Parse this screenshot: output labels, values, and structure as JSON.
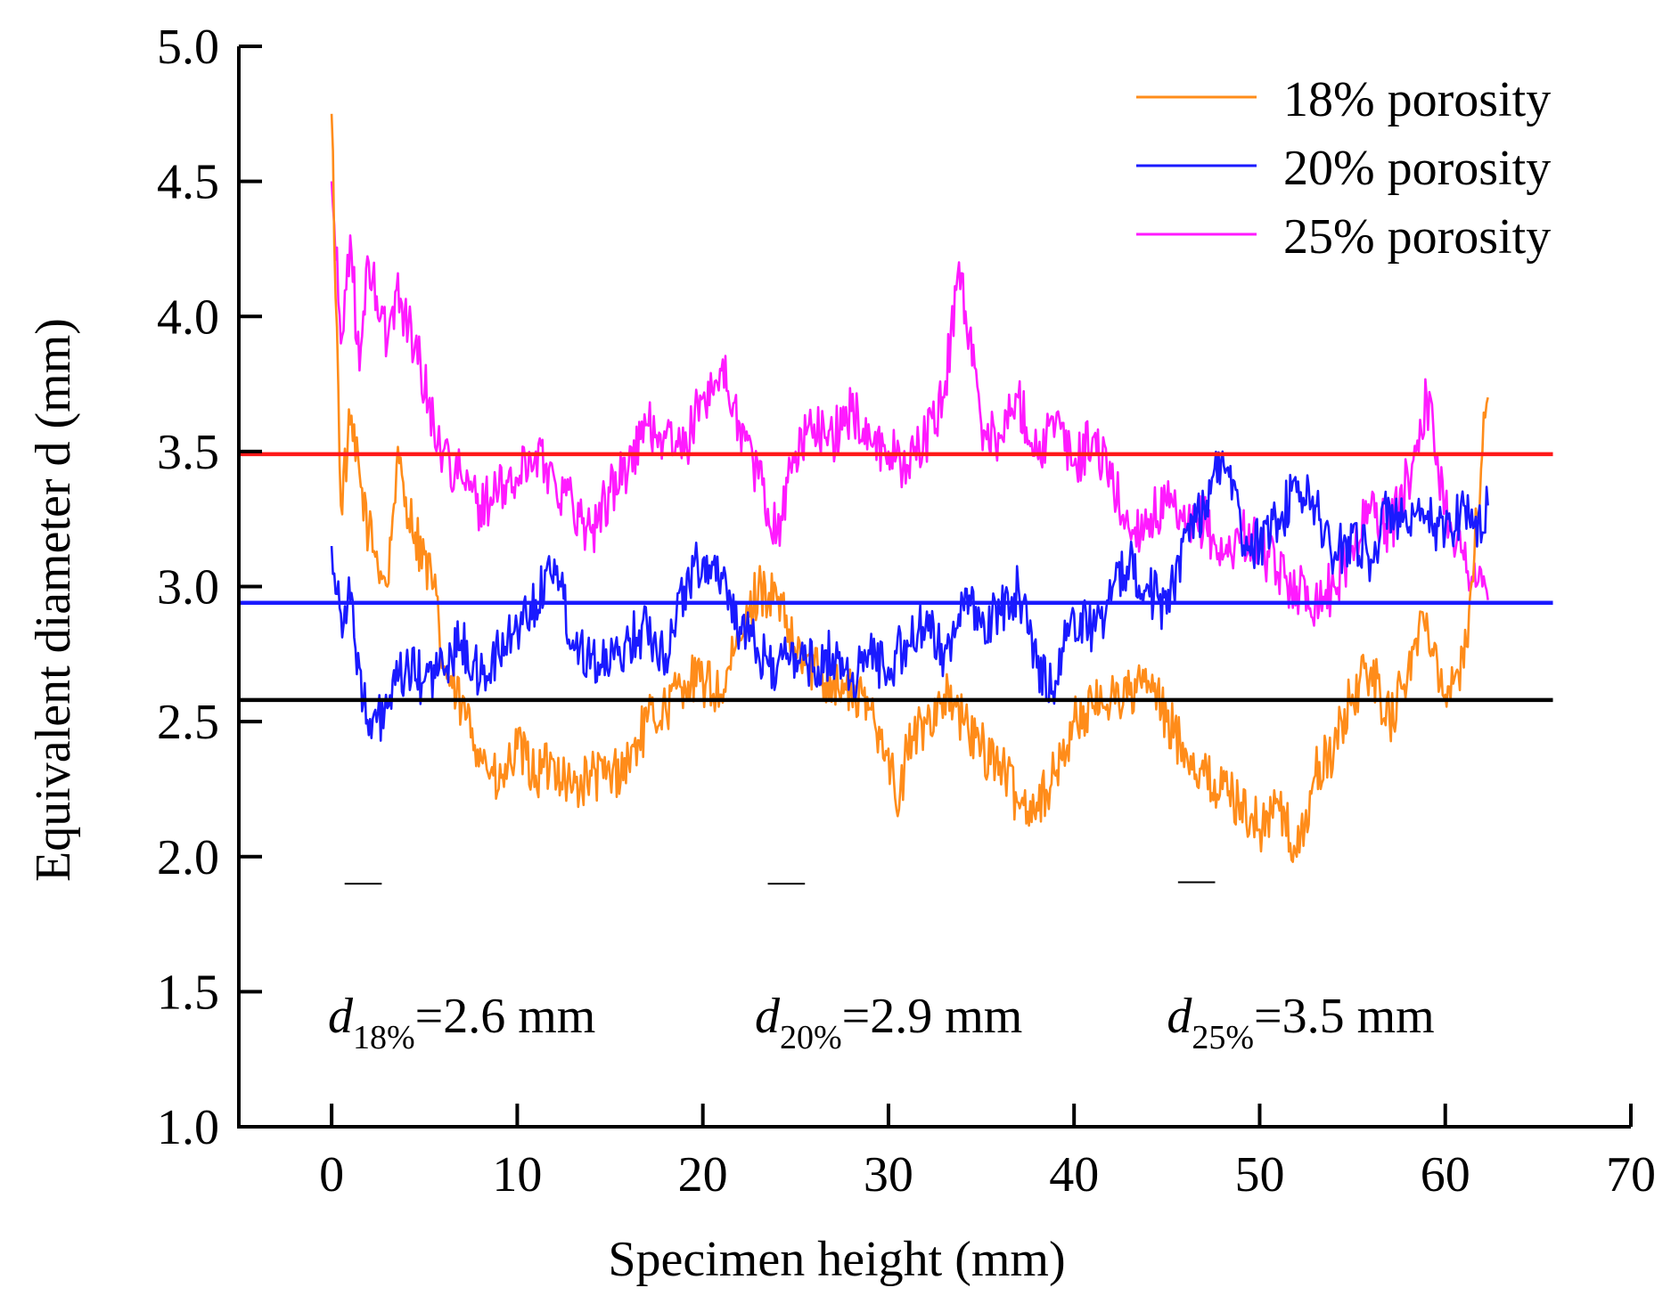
{
  "chart_data": {
    "type": "line",
    "title": "",
    "xlabel": "Specimen height (mm)",
    "ylabel": "Equivalent diameter d (mm)",
    "xlim": [
      -5,
      70
    ],
    "ylim": [
      1.0,
      5.0
    ],
    "x_ticks": [
      0,
      10,
      20,
      30,
      40,
      50,
      60,
      70
    ],
    "y_ticks": [
      1.0,
      1.5,
      2.0,
      2.5,
      3.0,
      3.5,
      4.0,
      4.5,
      5.0
    ],
    "x_tick_labels": [
      "0",
      "10",
      "20",
      "30",
      "40",
      "50",
      "60",
      "70"
    ],
    "y_tick_labels": [
      "1.0",
      "1.5",
      "2.0",
      "2.5",
      "3.0",
      "3.5",
      "4.0",
      "4.5",
      "5.0"
    ],
    "legend_position": "top-right",
    "series": [
      {
        "name": "18% porosity",
        "color": "#ff8c1a",
        "x": [
          0,
          0.5,
          1,
          2,
          3,
          3.5,
          4.5,
          5.5,
          6,
          7,
          8,
          9,
          10,
          11,
          12,
          13,
          14,
          15,
          16,
          17,
          18,
          19,
          20,
          21,
          22,
          23,
          24,
          25,
          26,
          27,
          28,
          29,
          30,
          30.5,
          31,
          32,
          33,
          34,
          35,
          36,
          37,
          38,
          39,
          40,
          41,
          42,
          43,
          44,
          45,
          46,
          47,
          48,
          49,
          50,
          51,
          52,
          53,
          54,
          55,
          56,
          57,
          58,
          59,
          60,
          61,
          62,
          62.3
        ],
        "values": [
          4.75,
          3.3,
          3.6,
          3.2,
          3.0,
          3.45,
          3.2,
          3.0,
          2.7,
          2.55,
          2.4,
          2.25,
          2.4,
          2.3,
          2.35,
          2.25,
          2.3,
          2.3,
          2.35,
          2.5,
          2.55,
          2.65,
          2.65,
          2.6,
          2.8,
          3.0,
          2.95,
          2.75,
          2.7,
          2.65,
          2.6,
          2.55,
          2.4,
          2.15,
          2.4,
          2.5,
          2.6,
          2.5,
          2.4,
          2.35,
          2.2,
          2.2,
          2.3,
          2.5,
          2.55,
          2.6,
          2.6,
          2.65,
          2.5,
          2.4,
          2.3,
          2.25,
          2.2,
          2.1,
          2.2,
          2.0,
          2.3,
          2.4,
          2.6,
          2.7,
          2.5,
          2.7,
          2.9,
          2.6,
          2.7,
          3.5,
          3.7
        ]
      },
      {
        "name": "20% porosity",
        "color": "#1a1aff",
        "x": [
          0,
          0.5,
          1,
          1.5,
          2,
          3,
          4,
          5,
          6,
          7,
          8,
          9,
          10,
          11,
          12,
          13,
          14,
          15,
          16,
          17,
          18,
          19,
          20,
          21,
          22,
          23,
          24,
          25,
          26,
          27,
          28,
          29,
          30,
          31,
          32,
          33,
          34,
          35,
          36,
          37,
          38,
          39,
          40,
          41,
          42,
          43,
          44,
          45,
          46,
          47,
          48,
          49,
          50,
          51,
          52,
          53,
          54,
          55,
          56,
          57,
          58,
          59,
          60,
          61,
          62,
          62.3
        ],
        "values": [
          3.15,
          2.9,
          2.95,
          2.7,
          2.45,
          2.55,
          2.7,
          2.65,
          2.7,
          2.8,
          2.65,
          2.75,
          2.85,
          2.95,
          3.1,
          2.8,
          2.75,
          2.7,
          2.8,
          2.85,
          2.75,
          3.0,
          3.1,
          3.05,
          2.85,
          2.75,
          2.7,
          2.75,
          2.7,
          2.75,
          2.65,
          2.75,
          2.7,
          2.8,
          2.85,
          2.75,
          2.95,
          2.85,
          2.9,
          3.0,
          2.7,
          2.65,
          2.9,
          2.85,
          2.95,
          3.1,
          3.0,
          2.9,
          3.2,
          3.3,
          3.5,
          3.2,
          3.15,
          3.25,
          3.35,
          3.3,
          3.1,
          3.2,
          3.1,
          3.3,
          3.2,
          3.25,
          3.2,
          3.3,
          3.2,
          3.3
        ]
      },
      {
        "name": "25% porosity",
        "color": "#ff1aff",
        "x": [
          0,
          0.5,
          1,
          1.5,
          2,
          3,
          3.5,
          4.5,
          5.5,
          6,
          7,
          8,
          9,
          10,
          11,
          12,
          13,
          14,
          15,
          16,
          17,
          18,
          19,
          20,
          21,
          22,
          23,
          24,
          25,
          26,
          27,
          28,
          29,
          30,
          31,
          32,
          33,
          33.8,
          35,
          36,
          37,
          38,
          39,
          40,
          41,
          42,
          43,
          44,
          45,
          46,
          47,
          48,
          49,
          50,
          51,
          52,
          53,
          54,
          55,
          56,
          57,
          58,
          59,
          60,
          61,
          62,
          62.3
        ],
        "values": [
          4.5,
          3.9,
          4.3,
          3.8,
          4.2,
          3.9,
          4.1,
          3.9,
          3.6,
          3.5,
          3.4,
          3.3,
          3.35,
          3.4,
          3.5,
          3.4,
          3.3,
          3.2,
          3.35,
          3.45,
          3.6,
          3.55,
          3.5,
          3.7,
          3.8,
          3.6,
          3.4,
          3.2,
          3.5,
          3.6,
          3.55,
          3.65,
          3.55,
          3.5,
          3.45,
          3.55,
          3.7,
          4.2,
          3.6,
          3.55,
          3.7,
          3.5,
          3.6,
          3.45,
          3.55,
          3.4,
          3.2,
          3.25,
          3.3,
          3.2,
          3.25,
          3.1,
          3.2,
          3.15,
          3.05,
          3.0,
          2.95,
          3.0,
          3.15,
          3.3,
          3.2,
          3.4,
          3.7,
          3.3,
          3.1,
          3.0,
          2.95
        ]
      }
    ],
    "reference_lines": [
      {
        "name": "mean-25",
        "y": 3.49,
        "color": "#ff1a1a"
      },
      {
        "name": "mean-20",
        "y": 2.94,
        "color": "#1a1aff"
      },
      {
        "name": "mean-18",
        "y": 2.58,
        "color": "#000000"
      }
    ],
    "annotations": [
      {
        "base": "d",
        "sub": "18%",
        "rest": "=2.6 mm",
        "x": -0.2,
        "y": 1.35
      },
      {
        "base": "d",
        "sub": "20%",
        "rest": "=2.9 mm",
        "x": 22.8,
        "y": 1.35
      },
      {
        "base": "d",
        "sub": "25%",
        "rest": "=3.5 mm",
        "x": 45.0,
        "y": 1.35
      }
    ],
    "annotation_marks": [
      {
        "x1": 0.7,
        "x2": 2.7,
        "y": 1.9
      },
      {
        "x1": 23.5,
        "x2": 25.5,
        "y": 1.9
      },
      {
        "x1": 45.6,
        "x2": 47.6,
        "y": 1.905
      }
    ]
  }
}
